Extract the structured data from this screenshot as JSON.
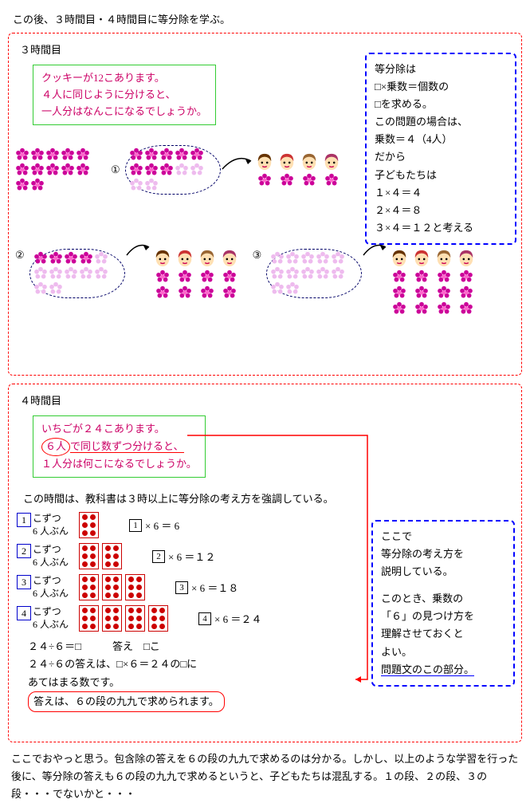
{
  "intro": "この後、３時間目・４時間目に等分除を学ぶ。",
  "lesson3": {
    "label": "３時間目",
    "problem_l1": "クッキーが12こあります。",
    "problem_l2": "４人に同じように分けると、",
    "problem_l3": "一人分はなんこになるでしょうか。",
    "explain_l1": "等分除は",
    "explain_l2": "□×乗数＝個数の",
    "explain_l3": "□を求める。",
    "explain_l4": "この問題の場合は、",
    "explain_l5": "乗数＝４（4人）",
    "explain_l6": "だから",
    "explain_l7": "子どもたちは",
    "explain_l8": "１×４＝４",
    "explain_l9": "２×４＝８",
    "explain_l10": "３×４＝１２と考える",
    "marker1": "①",
    "marker2": "②",
    "marker3": "③",
    "flower_dark": "#cc0099",
    "flower_light": "#eebbee",
    "flower_center": "#ff66cc"
  },
  "lesson4": {
    "label": "４時間目",
    "problem_l1": "いちごが２４こあります。",
    "problem_l2a": "６人",
    "problem_l2b": "で同じ数ずつ分けると、",
    "problem_l3": "１人分は何こになるでしょうか。",
    "note": "この時間は、教科書は３時以上に等分除の考え方を強調している。",
    "step1_label": "こずつ\n6 人ぶん",
    "step2_label": "こずつ\n6 人ぶん",
    "step3_label": "こずつ\n6 人ぶん",
    "step4_label": "こずつ\n6 人ぶん",
    "eq1": "× 6 ＝ 6",
    "eq2": "× 6 ＝１２",
    "eq3": "× 6 ＝１８",
    "eq4": "× 6 ＝２４",
    "n1": "1",
    "n2": "2",
    "n3": "3",
    "n4": "4",
    "answer_l1": "２４÷６＝□　　　答え　□こ",
    "answer_l2": "２４÷６の答えは、□×６＝２４の□に",
    "answer_l3": "あてはまる数です。",
    "answer_l4": "答えは、６の段の九九で求められます。",
    "blue_l1": "ここで",
    "blue_l2": "等分除の考え方を",
    "blue_l3": "説明している。",
    "blue_l4": "このとき、乗数の",
    "blue_l5": "「６」の見つけ方を",
    "blue_l6": "理解させておくと",
    "blue_l7": "よい。",
    "blue_l8": "問題文のこの部分。",
    "dot_color": "#cc0000"
  },
  "footer": "ここでおやっと思う。包含除の答えを６の段の九九で求めるのは分かる。しかし、以上のような学習を行った後に、等分除の答えも６の段の九九で求めるというと、子どもたちは混乱する。１の段、２の段、３の段・・・でないかと・・・"
}
